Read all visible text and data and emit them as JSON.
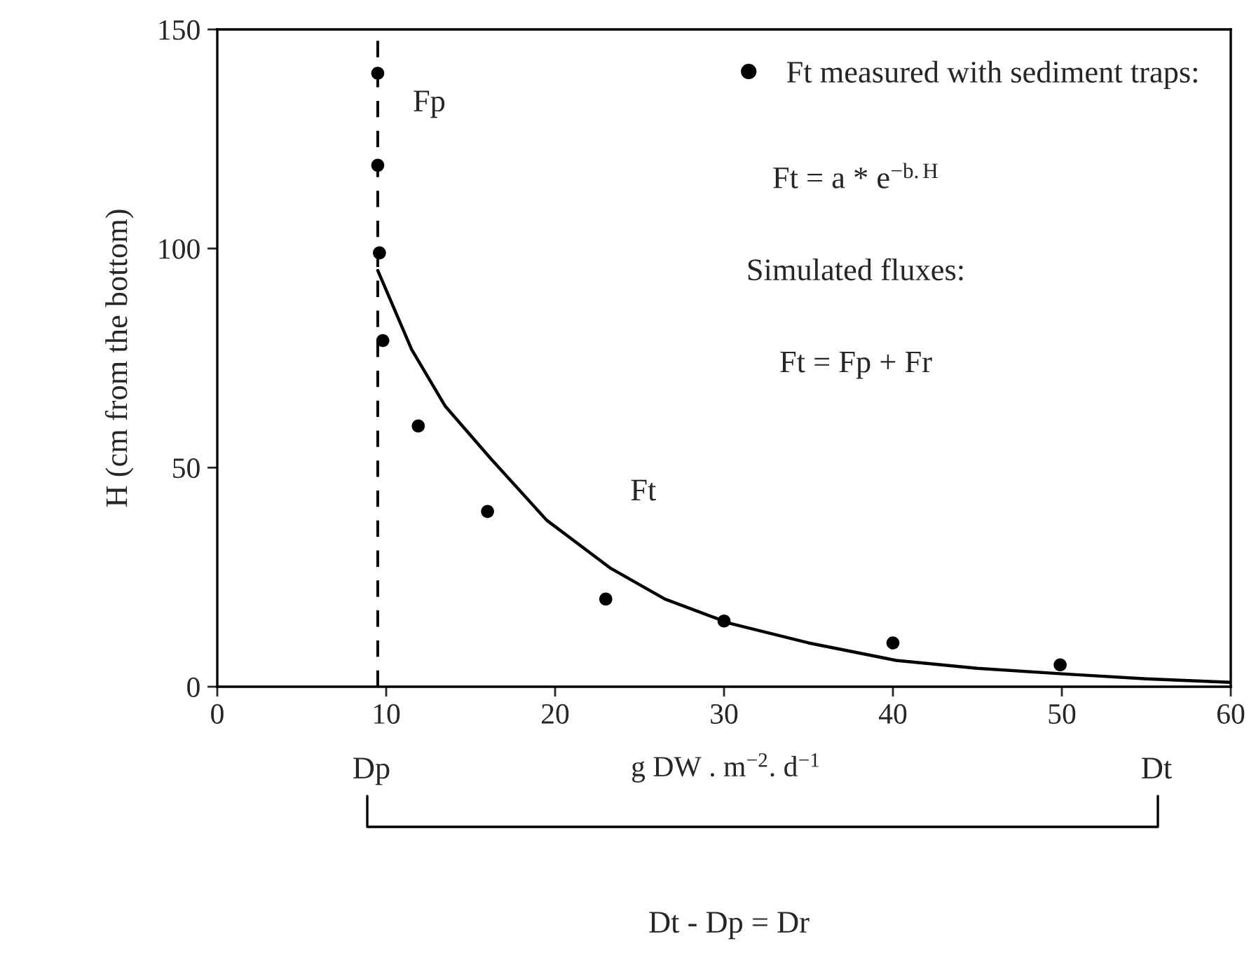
{
  "chart_data": {
    "type": "scatter",
    "xlabel": "g DW . m$^{−2}$. d$^{−1}$",
    "ylabel": "H (cm from the bottom)",
    "xlim": [
      0,
      60
    ],
    "ylim": [
      0,
      150
    ],
    "xticks": [
      0,
      10,
      20,
      30,
      40,
      50,
      60
    ],
    "yticks": [
      0,
      50,
      100,
      150
    ],
    "grid": false,
    "legend": "top right",
    "series": [
      {
        "name": "Ft measured with sediment traps:",
        "marker": "circle",
        "color": "#000000",
        "x": [
          9.5,
          9.5,
          9.6,
          9.8,
          11.9,
          16,
          23,
          30,
          40,
          49.9
        ],
        "values": [
          140,
          119,
          99,
          79,
          59.5,
          40,
          20,
          15,
          10,
          5
        ]
      },
      {
        "name": "Ft",
        "type": "line",
        "color": "#000000",
        "x": [
          9.5,
          11.5,
          13.5,
          16.2,
          19.5,
          23.3,
          26.5,
          30.4,
          35,
          40.2,
          45,
          50.2,
          55,
          60
        ],
        "values": [
          95,
          77,
          64,
          52,
          38,
          27,
          20,
          14.4,
          10,
          6,
          4.2,
          2.9,
          1.8,
          1
        ]
      }
    ],
    "ref_lines": [
      {
        "axis": "x",
        "value": 9.5,
        "label": "Fp",
        "color": "#000000",
        "line_style": "dashed"
      }
    ],
    "annotations": [
      "Ft = a * e$^{−b.H}$",
      "Simulated fluxes:",
      "Ft = Fp + Fr",
      "Dp",
      "Dt",
      "Dt - Dp = Dr"
    ]
  }
}
